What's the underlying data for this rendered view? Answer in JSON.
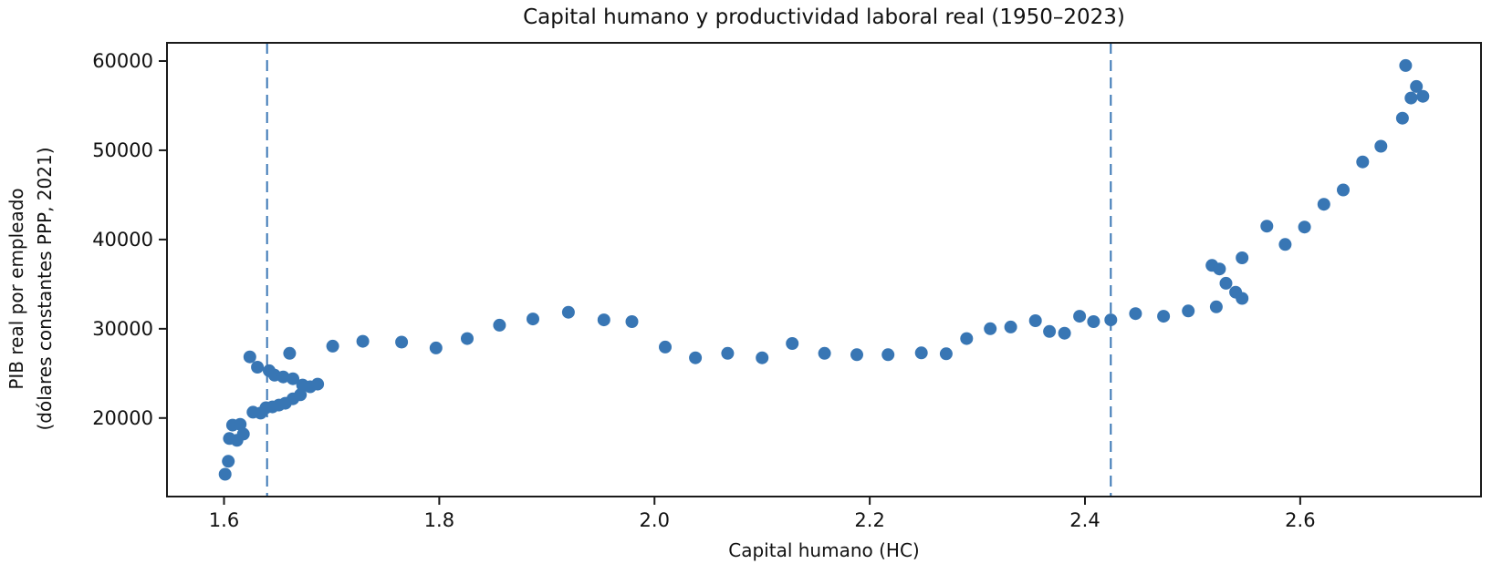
{
  "chart_data": {
    "type": "scatter",
    "title": "Capital humano y productividad laboral real (1950–2023)",
    "xlabel": "Capital humano (HC)",
    "ylabel_lines": [
      "PIB real por empleado",
      "(dólares constantes PPP, 2021)"
    ],
    "x_tick_values": [
      1.6,
      1.8,
      2.0,
      2.2,
      2.4,
      2.6
    ],
    "x_tick_labels": [
      "1.6",
      "1.8",
      "2.0",
      "2.2",
      "2.4",
      "2.6"
    ],
    "y_tick_values": [
      20000,
      30000,
      40000,
      50000,
      60000
    ],
    "y_tick_labels": [
      "20000",
      "30000",
      "40000",
      "50000",
      "60000"
    ],
    "xlim": [
      1.547,
      2.768
    ],
    "ylim": [
      11200,
      62040
    ],
    "grid": false,
    "legend": null,
    "marker_color": "#3876b4",
    "marker_radius": 7,
    "axis_color": "#1a1a1a",
    "vlines": {
      "x": [
        1.64,
        2.424
      ],
      "color": "#3a77b5",
      "style": "dashed"
    },
    "points": [
      [
        1.601,
        13700
      ],
      [
        1.604,
        15150
      ],
      [
        1.605,
        17700
      ],
      [
        1.608,
        19200
      ],
      [
        1.612,
        17500
      ],
      [
        1.615,
        19300
      ],
      [
        1.618,
        18200
      ],
      [
        1.624,
        26850
      ],
      [
        1.627,
        20650
      ],
      [
        1.631,
        25700
      ],
      [
        1.634,
        20550
      ],
      [
        1.639,
        21150
      ],
      [
        1.642,
        25300
      ],
      [
        1.645,
        21250
      ],
      [
        1.647,
        24800
      ],
      [
        1.651,
        21450
      ],
      [
        1.655,
        24600
      ],
      [
        1.657,
        21650
      ],
      [
        1.661,
        27250
      ],
      [
        1.664,
        22150
      ],
      [
        1.664,
        24400
      ],
      [
        1.671,
        22600
      ],
      [
        1.673,
        23700
      ],
      [
        1.68,
        23500
      ],
      [
        1.687,
        23800
      ],
      [
        1.701,
        28050
      ],
      [
        1.729,
        28600
      ],
      [
        1.765,
        28500
      ],
      [
        1.797,
        27850
      ],
      [
        1.826,
        28900
      ],
      [
        1.856,
        30400
      ],
      [
        1.887,
        31100
      ],
      [
        1.92,
        31850
      ],
      [
        1.953,
        31000
      ],
      [
        1.979,
        30800
      ],
      [
        2.01,
        27950
      ],
      [
        2.038,
        26750
      ],
      [
        2.068,
        27250
      ],
      [
        2.1,
        26750
      ],
      [
        2.128,
        28350
      ],
      [
        2.158,
        27250
      ],
      [
        2.188,
        27100
      ],
      [
        2.217,
        27100
      ],
      [
        2.248,
        27300
      ],
      [
        2.271,
        27200
      ],
      [
        2.29,
        28900
      ],
      [
        2.312,
        30000
      ],
      [
        2.331,
        30200
      ],
      [
        2.354,
        30900
      ],
      [
        2.367,
        29700
      ],
      [
        2.381,
        29500
      ],
      [
        2.395,
        31400
      ],
      [
        2.408,
        30800
      ],
      [
        2.424,
        31000
      ],
      [
        2.447,
        31700
      ],
      [
        2.473,
        31400
      ],
      [
        2.496,
        32000
      ],
      [
        2.518,
        37100
      ],
      [
        2.522,
        32450
      ],
      [
        2.525,
        36700
      ],
      [
        2.531,
        35100
      ],
      [
        2.54,
        34100
      ],
      [
        2.546,
        33400
      ],
      [
        2.546,
        37950
      ],
      [
        2.569,
        41500
      ],
      [
        2.586,
        39450
      ],
      [
        2.604,
        41400
      ],
      [
        2.622,
        43950
      ],
      [
        2.64,
        45550
      ],
      [
        2.658,
        48700
      ],
      [
        2.675,
        50450
      ],
      [
        2.695,
        53600
      ],
      [
        2.698,
        59500
      ],
      [
        2.703,
        55850
      ],
      [
        2.708,
        57150
      ],
      [
        2.714,
        56050
      ]
    ]
  }
}
